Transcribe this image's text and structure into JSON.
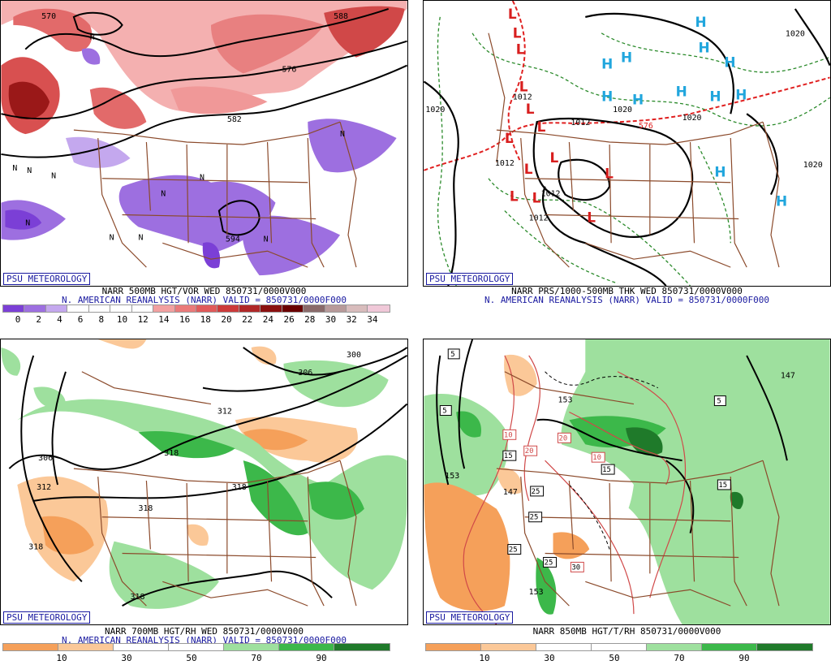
{
  "panels": {
    "top_left": {
      "badge": "PSU METEOROLOGY",
      "title_line1": "NARR 500MB HGT/VOR WED 850731/0000V000",
      "title_line2": "N. AMERICAN REANALYSIS (NARR) VALID = 850731/0000F000",
      "colorbar": {
        "colors": [
          "#7b3fd6",
          "#9d6fe0",
          "#c4a8ee",
          "#ffffff",
          "#ffffff",
          "#ffffff",
          "#ffffff",
          "#f2a0a0",
          "#ea7a7a",
          "#e05a5a",
          "#cc3a3a",
          "#b02828",
          "#8a1010",
          "#6a0000",
          "#8a6a6a",
          "#b89a9a",
          "#d8bcbc",
          "#f0c8d8"
        ],
        "ticks": [
          "0",
          "2",
          "4",
          "6",
          "8",
          "10",
          "12",
          "14",
          "16",
          "18",
          "20",
          "22",
          "24",
          "26",
          "28",
          "30",
          "32",
          "34"
        ]
      },
      "contour_labels": [
        "576",
        "582",
        "594",
        "588",
        "570"
      ],
      "vorticity_marks": [
        "N",
        "N",
        "N",
        "N",
        "N",
        "N",
        "N",
        "N",
        "N",
        "N",
        "N"
      ]
    },
    "top_right": {
      "badge": "PSU METEOROLOGY",
      "title_line1": "NARR PRS/1000-500MB THK WED 850731/0000V000",
      "title_line2": "N. AMERICAN REANALYSIS (NARR) VALID = 850731/0000F000",
      "pressure_labels": [
        "1020",
        "1020",
        "1012",
        "1012",
        "1012",
        "1020",
        "1020",
        "1012",
        "1012",
        "1020"
      ],
      "low_centers": [
        "L",
        "L",
        "L",
        "L",
        "L",
        "L",
        "L",
        "L",
        "L",
        "L",
        "L",
        "L",
        "L"
      ],
      "high_centers": [
        "H",
        "H",
        "H",
        "H",
        "H",
        "H",
        "H",
        "H",
        "H",
        "H",
        "H",
        "H"
      ],
      "thickness_label": "576"
    },
    "bottom_left": {
      "badge": "PSU METEOROLOGY",
      "title_line1": "NARR 700MB HGT/RH WED 850731/0000V000",
      "title_line2": "N. AMERICAN REANALYSIS (NARR) VALID = 850731/0000F000",
      "colorbar": {
        "colors": [
          "#f5a05a",
          "#fbc898",
          "#ffffff",
          "#ffffff",
          "#9ee09e",
          "#3cb84a",
          "#1f7a2a"
        ],
        "ticks": [
          "10",
          "30",
          "50",
          "70",
          "90"
        ]
      },
      "height_labels": [
        "300",
        "306",
        "312",
        "306",
        "312",
        "318",
        "318",
        "318",
        "318",
        "318"
      ]
    },
    "bottom_right": {
      "badge": "PSU METEOROLOGY",
      "title_line1": "NARR 850MB HGT/T/RH 850731/0000V000",
      "colorbar": {
        "colors": [
          "#f5a05a",
          "#fbc898",
          "#ffffff",
          "#ffffff",
          "#9ee09e",
          "#3cb84a",
          "#1f7a2a"
        ],
        "ticks": [
          "10",
          "30",
          "50",
          "70",
          "90"
        ]
      },
      "height_labels": [
        "153",
        "153",
        "147",
        "153",
        "147"
      ],
      "temp_labels": [
        "5",
        "5",
        "5",
        "10",
        "20",
        "20",
        "10",
        "15",
        "15",
        "25",
        "25",
        "25",
        "25",
        "30",
        "15"
      ]
    }
  },
  "colors": {
    "state_borders": "#8b4a2b",
    "contours": "#000000",
    "title_blue": "#1a1aa0",
    "low_red": "#d81e1e",
    "high_cyan": "#21a6dd",
    "dashed_green": "#2a8a2a",
    "thickness_red": "#e02020"
  }
}
